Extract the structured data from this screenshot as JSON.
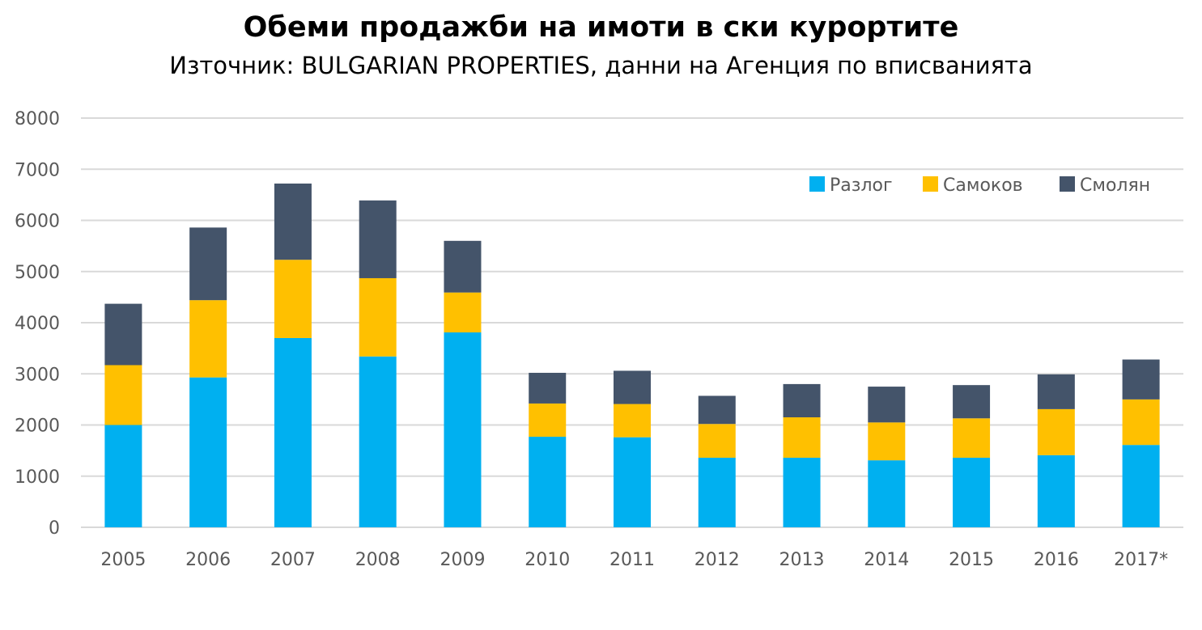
{
  "chart_data": {
    "type": "bar",
    "stacked": true,
    "title": "Обеми продажби на имоти в ски курортите",
    "subtitle": "Източник: BULGARIAN PROPERTIES, данни на Агенция по вписванията",
    "categories": [
      "2005",
      "2006",
      "2007",
      "2008",
      "2009",
      "2010",
      "2011",
      "2012",
      "2013",
      "2014",
      "2015",
      "2016",
      "2017*"
    ],
    "series": [
      {
        "name": "Разлог",
        "color": "#00B0F0",
        "values": [
          2000,
          2930,
          3700,
          3340,
          3810,
          1770,
          1760,
          1360,
          1360,
          1310,
          1360,
          1410,
          1610
        ]
      },
      {
        "name": "Самоков",
        "color": "#FFC000",
        "values": [
          1170,
          1510,
          1530,
          1530,
          780,
          650,
          650,
          660,
          790,
          740,
          770,
          900,
          890
        ]
      },
      {
        "name": "Смолян",
        "color": "#44546A",
        "values": [
          1200,
          1420,
          1490,
          1520,
          1010,
          600,
          650,
          550,
          650,
          700,
          650,
          680,
          780
        ]
      }
    ],
    "ylim": [
      0,
      8000
    ],
    "yticks": [
      0,
      1000,
      2000,
      3000,
      4000,
      5000,
      6000,
      7000,
      8000
    ],
    "grid": true,
    "legend": "top-right",
    "xlabel": "",
    "ylabel": ""
  }
}
